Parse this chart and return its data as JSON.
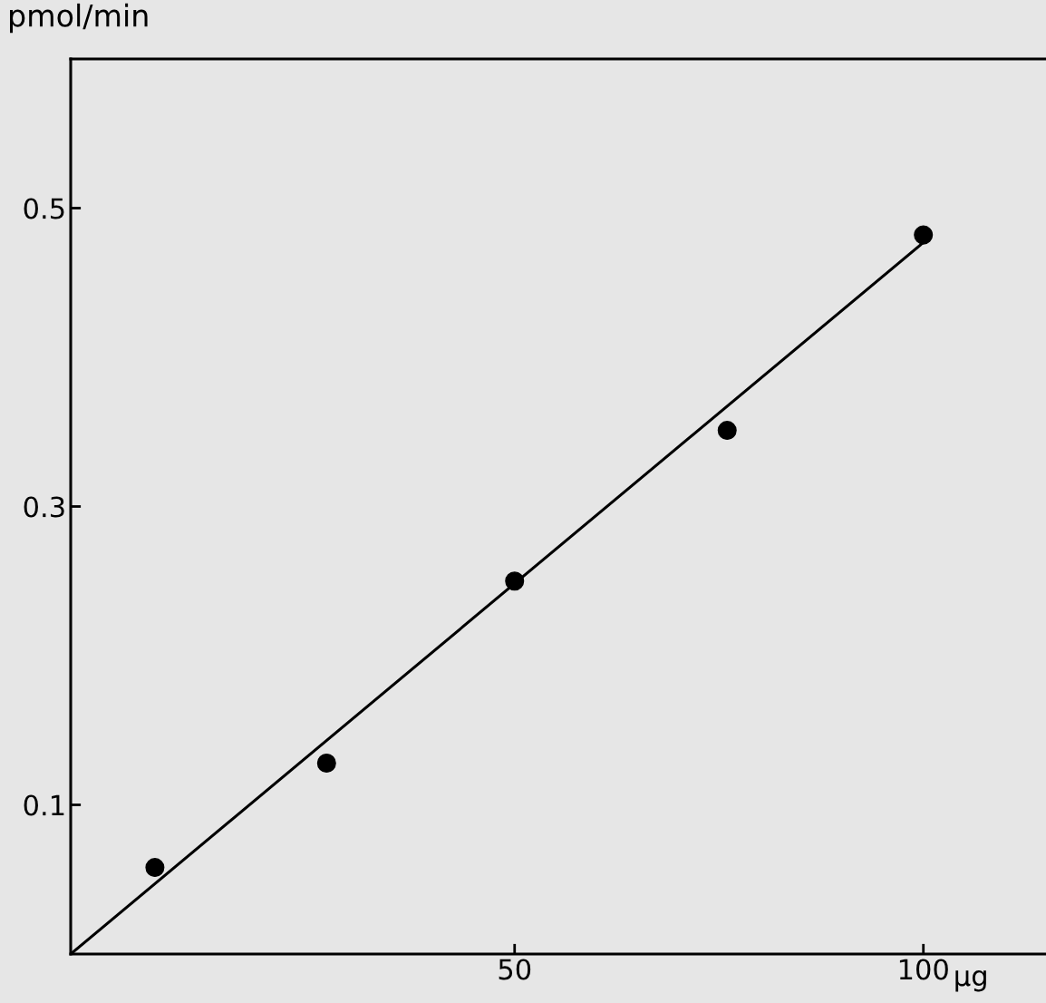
{
  "chart_data": {
    "type": "scatter",
    "ylabel": "pmol/min",
    "xlabel": "µg",
    "xlim": [
      -4.3,
      115
    ],
    "ylim": [
      0,
      0.6
    ],
    "xticks": [
      50,
      100
    ],
    "yticks": [
      0.1,
      0.3,
      0.5
    ],
    "grid": false,
    "marker": "circle",
    "series": [
      {
        "color": "#000000",
        "x": [
          6,
          27,
          50,
          76,
          100
        ],
        "values": [
          0.058,
          0.128,
          0.25,
          0.351,
          0.482
        ]
      },
      {
        "type": "line",
        "color": "#000000",
        "marker": "none",
        "line_style": "solid",
        "x": [
          -4.3,
          100
        ],
        "values": [
          0,
          0.477
        ]
      }
    ]
  }
}
